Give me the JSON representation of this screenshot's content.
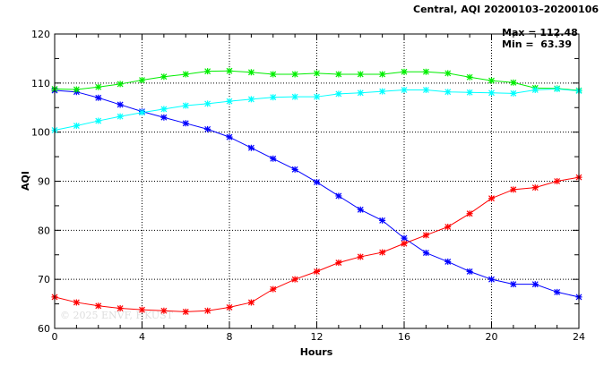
{
  "chart_data": {
    "type": "line",
    "title": "Central, AQI 20200103–20200106",
    "xlabel": "Hours",
    "ylabel": "AQI",
    "xlim": [
      0,
      24
    ],
    "ylim": [
      60,
      120
    ],
    "xticks": [
      0,
      4,
      8,
      12,
      16,
      20,
      24
    ],
    "yticks": [
      60,
      70,
      80,
      90,
      100,
      110,
      120
    ],
    "grid": true,
    "annotations": {
      "max": "Max = 112.48",
      "min": "Min =  63.39",
      "watermark": "© 2025  ENVF, HKUST"
    },
    "x": [
      0,
      1,
      2,
      3,
      4,
      5,
      6,
      7,
      8,
      9,
      10,
      11,
      12,
      13,
      14,
      15,
      16,
      17,
      18,
      19,
      20,
      21,
      22,
      23,
      24
    ],
    "series": [
      {
        "name": "blue",
        "color": "#0000ff",
        "values": [
          108.5,
          108.2,
          107,
          105.6,
          104.2,
          103,
          101.8,
          100.6,
          99,
          96.8,
          94.6,
          92.4,
          89.8,
          87,
          84.2,
          82,
          78.4,
          75.4,
          73.6,
          71.6,
          70,
          69,
          69,
          67.4,
          66.4
        ]
      },
      {
        "name": "red",
        "color": "#ff0000",
        "values": [
          66.4,
          65.3,
          64.6,
          64.1,
          63.8,
          63.6,
          63.39,
          63.6,
          64.3,
          65.3,
          68,
          70,
          71.6,
          73.4,
          74.6,
          75.5,
          77.3,
          79,
          80.7,
          83.4,
          86.5,
          88.3,
          88.7,
          90,
          90.8
        ]
      },
      {
        "name": "green",
        "color": "#00ee00",
        "values": [
          108.8,
          108.7,
          109.2,
          109.8,
          110.6,
          111.3,
          111.8,
          112.4,
          112.48,
          112.2,
          111.8,
          111.8,
          112,
          111.8,
          111.8,
          111.8,
          112.3,
          112.3,
          112,
          111.2,
          110.5,
          110.1,
          109,
          108.9,
          108.5
        ]
      },
      {
        "name": "cyan",
        "color": "#00ffff",
        "values": [
          100.4,
          101.3,
          102.3,
          103.2,
          104,
          104.7,
          105.4,
          105.8,
          106.3,
          106.7,
          107.1,
          107.2,
          107.2,
          107.8,
          108,
          108.3,
          108.6,
          108.6,
          108.2,
          108.1,
          108,
          107.9,
          108.6,
          108.8,
          108.4
        ]
      }
    ]
  }
}
